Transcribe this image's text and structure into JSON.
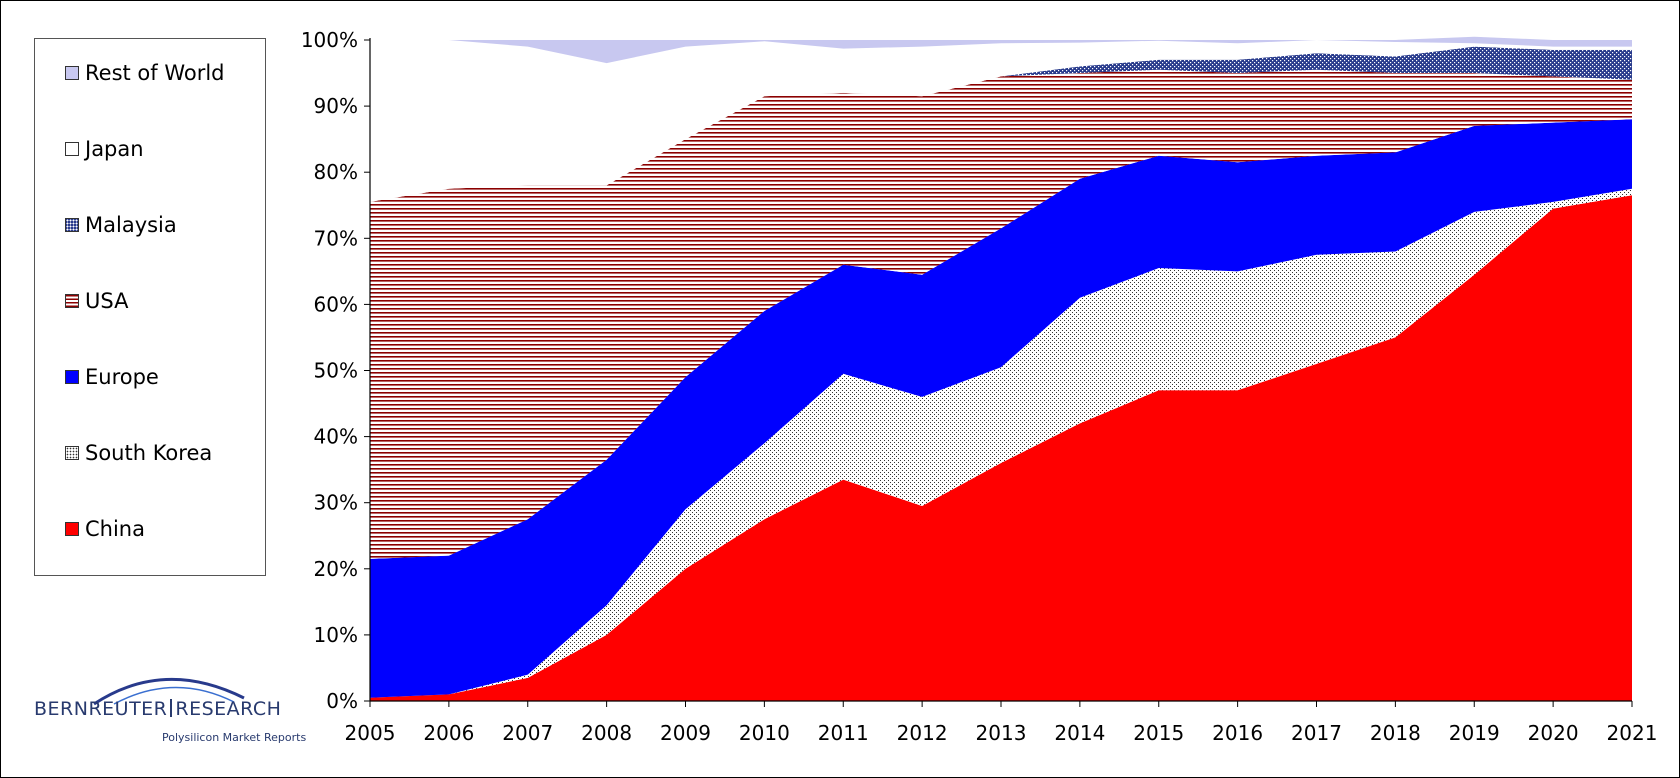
{
  "chart_data": {
    "type": "area",
    "stacked": true,
    "percent": true,
    "title": "",
    "xlabel": "",
    "ylabel": "",
    "x": [
      "2005",
      "2006",
      "2007",
      "2008",
      "2009",
      "2010",
      "2011",
      "2012",
      "2013",
      "2014",
      "2015",
      "2016",
      "2017",
      "2018",
      "2019",
      "2020",
      "2021"
    ],
    "ylim": [
      0,
      100
    ],
    "yticks": [
      "0%",
      "10%",
      "20%",
      "30%",
      "40%",
      "50%",
      "60%",
      "70%",
      "80%",
      "90%",
      "100%"
    ],
    "legend_position": "left",
    "series": [
      {
        "name": "China",
        "color": "#ff0000",
        "pattern": "solid",
        "values": [
          0.5,
          1.0,
          3.5,
          10.0,
          20.0,
          27.5,
          33.5,
          29.5,
          36.0,
          42.0,
          47.0,
          47.0,
          51.0,
          55.0,
          64.5,
          74.5,
          76.5
        ]
      },
      {
        "name": "South Korea",
        "color": "#ffffff",
        "pattern": "dots",
        "values": [
          0.0,
          0.0,
          0.5,
          4.5,
          9.0,
          11.5,
          16.0,
          16.5,
          14.5,
          19.0,
          18.5,
          18.0,
          16.5,
          13.0,
          9.5,
          1.0,
          1.0
        ]
      },
      {
        "name": "Europe",
        "color": "#0000ff",
        "pattern": "solid",
        "values": [
          21.0,
          21.0,
          23.5,
          22.0,
          20.0,
          20.0,
          16.5,
          18.5,
          21.0,
          18.0,
          17.0,
          16.5,
          15.0,
          15.0,
          13.0,
          12.0,
          10.5
        ]
      },
      {
        "name": "USA",
        "color": "#8b0000",
        "pattern": "horizontal-lines",
        "values": [
          54.0,
          55.5,
          50.5,
          41.5,
          36.0,
          32.5,
          26.0,
          27.0,
          23.0,
          16.0,
          13.0,
          13.5,
          13.0,
          12.0,
          8.0,
          7.0,
          6.0
        ]
      },
      {
        "name": "Malaysia",
        "color": "#283a8c",
        "pattern": "crosshatch",
        "values": [
          0.0,
          0.0,
          0.0,
          0.0,
          0.0,
          0.0,
          0.0,
          0.0,
          0.0,
          1.0,
          1.5,
          2.0,
          2.5,
          2.5,
          4.0,
          4.0,
          4.5
        ]
      },
      {
        "name": "Japan",
        "color": "#ffffff",
        "pattern": "solid",
        "values": [
          24.5,
          22.5,
          21.0,
          18.5,
          14.0,
          8.3,
          6.7,
          7.5,
          5.0,
          3.6,
          2.9,
          2.5,
          2.0,
          2.2,
          0.5,
          0.5,
          0.5
        ]
      },
      {
        "name": "Rest of World",
        "color": "#c8c8f0",
        "pattern": "solid",
        "values": [
          0.0,
          0.0,
          1.0,
          3.5,
          1.0,
          0.2,
          1.3,
          1.0,
          0.5,
          0.4,
          0.1,
          0.5,
          0.0,
          0.3,
          1.0,
          1.0,
          1.0
        ]
      }
    ]
  },
  "legend": {
    "items": [
      {
        "label": "Rest of World",
        "swatch": "rest-of-world"
      },
      {
        "label": "Japan",
        "swatch": "japan"
      },
      {
        "label": "Malaysia",
        "swatch": "malaysia"
      },
      {
        "label": "USA",
        "swatch": "usa"
      },
      {
        "label": "Europe",
        "swatch": "europe"
      },
      {
        "label": "South Korea",
        "swatch": "south-korea"
      },
      {
        "label": "China",
        "swatch": "china"
      }
    ]
  },
  "logo": {
    "company_left": "BERNREUTER",
    "company_right": "RESEARCH",
    "tagline": "Polysilicon Market Reports"
  }
}
